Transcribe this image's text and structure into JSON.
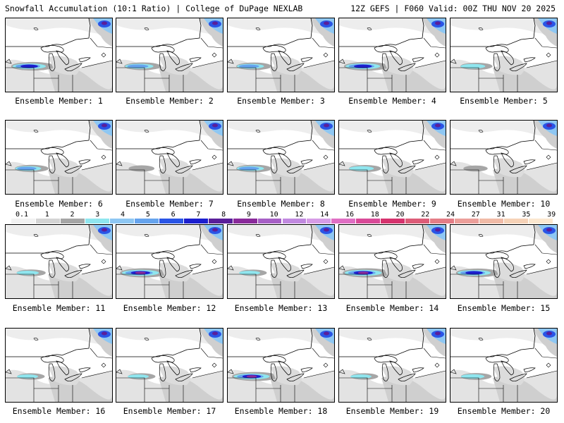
{
  "header": {
    "left": "Snowfall Accumulation (10:1 Ratio) | College of DuPage NEXLAB",
    "right": "12Z GEFS | F060 Valid: 00Z THU NOV 20 2025"
  },
  "member_label_prefix": "Ensemble Member:",
  "members": [
    {
      "id": "1",
      "band": 0.7
    },
    {
      "id": "2",
      "band": 0.5
    },
    {
      "id": "3",
      "band": 0.45
    },
    {
      "id": "4",
      "band": 0.75
    },
    {
      "id": "5",
      "band": 0.35
    },
    {
      "id": "6",
      "band": 0.4
    },
    {
      "id": "7",
      "band": 0.15
    },
    {
      "id": "8",
      "band": 0.45
    },
    {
      "id": "9",
      "band": 0.35
    },
    {
      "id": "10",
      "band": 0.1
    },
    {
      "id": "11",
      "band": 0.25
    },
    {
      "id": "12",
      "band": 0.85
    },
    {
      "id": "13",
      "band": 0.2
    },
    {
      "id": "14",
      "band": 0.85
    },
    {
      "id": "15",
      "band": 0.7
    },
    {
      "id": "16",
      "band": 0.2
    },
    {
      "id": "17",
      "band": 0.2
    },
    {
      "id": "18",
      "band": 0.8
    },
    {
      "id": "19",
      "band": 0.2
    },
    {
      "id": "20",
      "band": 0.3
    }
  ],
  "colorbar": {
    "labels": [
      "0.1",
      "1",
      "2",
      "3",
      "4",
      "5",
      "6",
      "7",
      "8",
      "9",
      "10",
      "12",
      "14",
      "16",
      "18",
      "20",
      "22",
      "24",
      "27",
      "31",
      "35",
      "39"
    ],
    "colors": [
      "#f2f2f2",
      "#d4d4d4",
      "#a6a6a6",
      "#8fe6ef",
      "#8ec7f3",
      "#66a4ee",
      "#2a55e6",
      "#1c1fcf",
      "#5a1f9a",
      "#8a2a9b",
      "#a75fc6",
      "#c189e0",
      "#d69ce6",
      "#e06fc4",
      "#d94a98",
      "#d6336e",
      "#dd5c78",
      "#e47d86",
      "#ec9f9a",
      "#f1bba7",
      "#f6d2b7",
      "#fbe7cf"
    ]
  }
}
